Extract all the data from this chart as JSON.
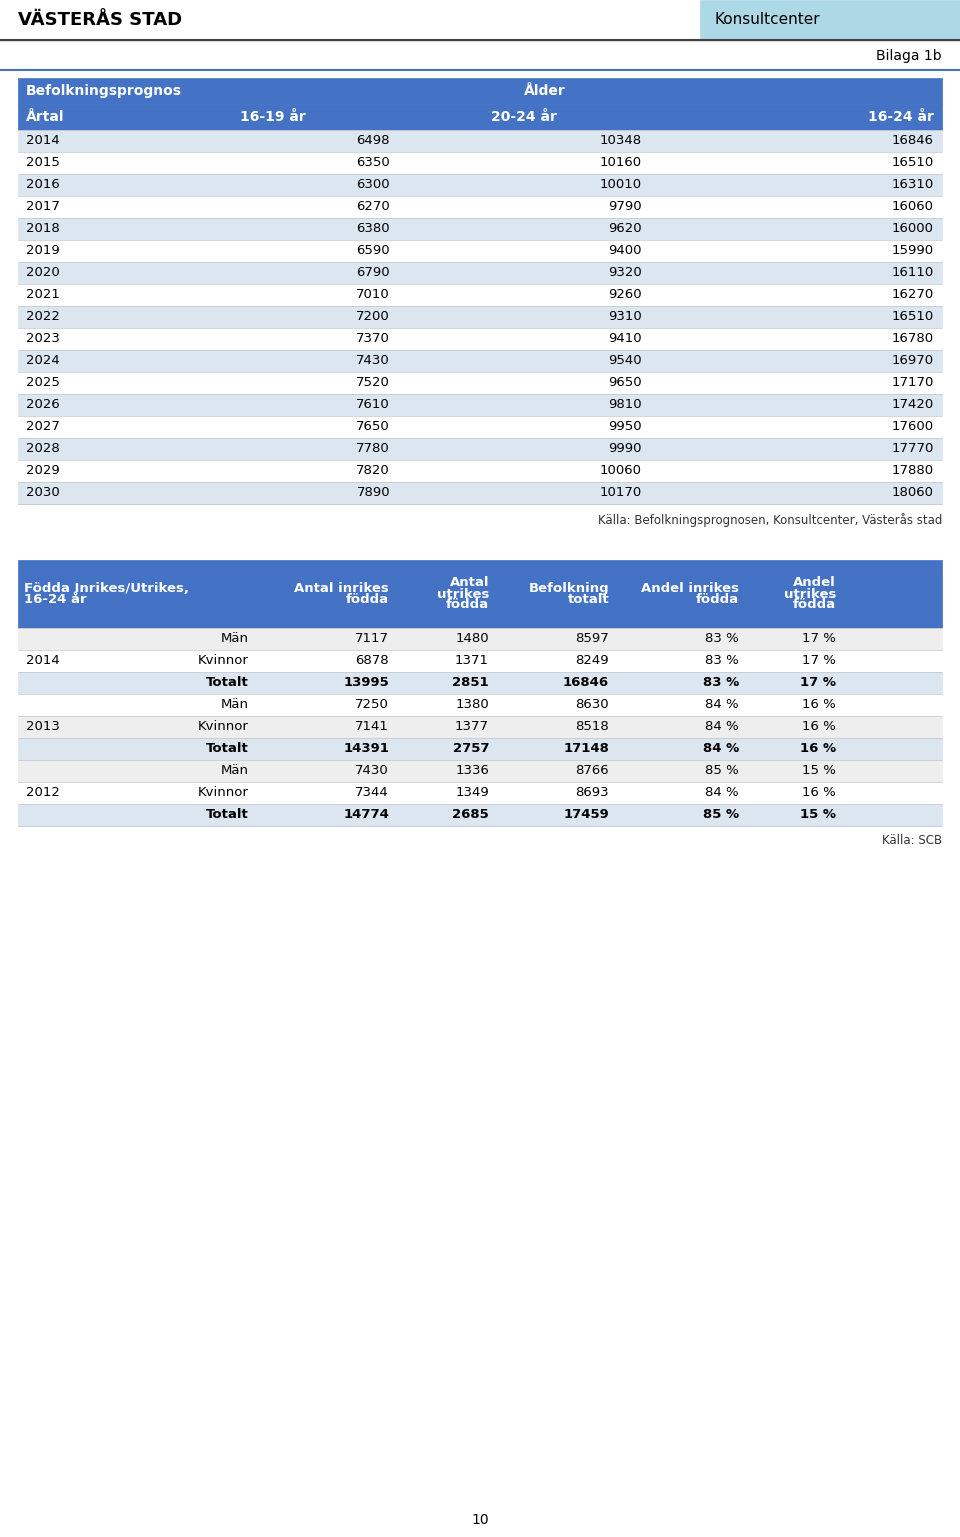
{
  "header_left": "VÄSTERÅS STAD",
  "header_right": "Konsultcenter",
  "header_right_bg": "#add8e6",
  "bilaga": "Bilaga 1b",
  "table1_title": "Befolkningsprognos",
  "table1_age_header": "Ålder",
  "table1_col_headers": [
    "Årtal",
    "16-19 år",
    "20-24 år",
    "16-24 år"
  ],
  "table1_header_bg": "#4472c4",
  "table1_header_fg": "#ffffff",
  "table1_row_bg_odd": "#dce6f1",
  "table1_row_bg_even": "#ffffff",
  "table1_data": [
    [
      2014,
      6498,
      10348,
      16846
    ],
    [
      2015,
      6350,
      10160,
      16510
    ],
    [
      2016,
      6300,
      10010,
      16310
    ],
    [
      2017,
      6270,
      9790,
      16060
    ],
    [
      2018,
      6380,
      9620,
      16000
    ],
    [
      2019,
      6590,
      9400,
      15990
    ],
    [
      2020,
      6790,
      9320,
      16110
    ],
    [
      2021,
      7010,
      9260,
      16270
    ],
    [
      2022,
      7200,
      9310,
      16510
    ],
    [
      2023,
      7370,
      9410,
      16780
    ],
    [
      2024,
      7430,
      9540,
      16970
    ],
    [
      2025,
      7520,
      9650,
      17170
    ],
    [
      2026,
      7610,
      9810,
      17420
    ],
    [
      2027,
      7650,
      9950,
      17600
    ],
    [
      2028,
      7780,
      9990,
      17770
    ],
    [
      2029,
      7820,
      10060,
      17880
    ],
    [
      2030,
      7890,
      10170,
      18060
    ]
  ],
  "table1_source": "Källa: Befolkningsprognosen, Konsultcenter, Västerås stad",
  "table2_header_bg": "#4472c4",
  "table2_header_fg": "#ffffff",
  "table2_data": [
    [
      "2014",
      "Män",
      7117,
      1480,
      8597,
      "83 %",
      "17 %"
    ],
    [
      "2014",
      "Kvinnor",
      6878,
      1371,
      8249,
      "83 %",
      "17 %"
    ],
    [
      "2014",
      "Totalt",
      13995,
      2851,
      16846,
      "83 %",
      "17 %"
    ],
    [
      "2013",
      "Män",
      7250,
      1380,
      8630,
      "84 %",
      "16 %"
    ],
    [
      "2013",
      "Kvinnor",
      7141,
      1377,
      8518,
      "84 %",
      "16 %"
    ],
    [
      "2013",
      "Totalt",
      14391,
      2757,
      17148,
      "84 %",
      "16 %"
    ],
    [
      "2012",
      "Män",
      7430,
      1336,
      8766,
      "85 %",
      "15 %"
    ],
    [
      "2012",
      "Kvinnor",
      7344,
      1349,
      8693,
      "84 %",
      "16 %"
    ],
    [
      "2012",
      "Totalt",
      14774,
      2685,
      17459,
      "85 %",
      "15 %"
    ]
  ],
  "table2_source": "Källa: SCB",
  "page_number": "10",
  "bg_color": "#ffffff",
  "line_color": "#4472c4"
}
